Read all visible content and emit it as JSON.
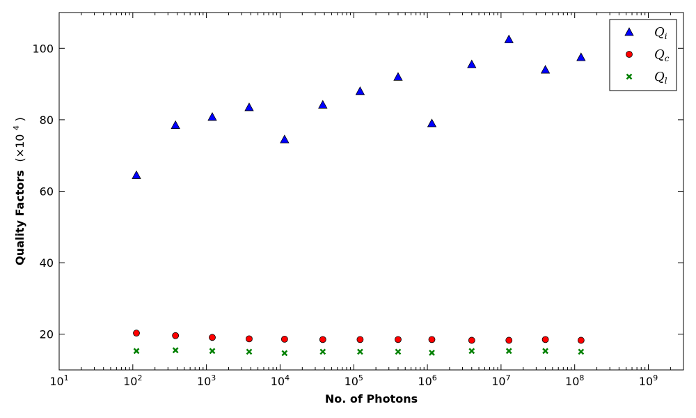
{
  "chart_data": {
    "type": "scatter",
    "xlabel": "No. of Photons",
    "ylabel": "Quality Factors",
    "ylabel_multiplier": "(×10",
    "ylabel_exponent": "4",
    "ylabel_close": ")",
    "x_scale": "log",
    "xlim": [
      10,
      3000000000
    ],
    "ylim": [
      10,
      110
    ],
    "x_ticks": [
      {
        "value": 10,
        "base": "10",
        "exp": "1"
      },
      {
        "value": 100,
        "base": "10",
        "exp": "2"
      },
      {
        "value": 1000,
        "base": "10",
        "exp": "3"
      },
      {
        "value": 10000,
        "base": "10",
        "exp": "4"
      },
      {
        "value": 100000,
        "base": "10",
        "exp": "5"
      },
      {
        "value": 1000000,
        "base": "10",
        "exp": "6"
      },
      {
        "value": 10000000,
        "base": "10",
        "exp": "7"
      },
      {
        "value": 100000000,
        "base": "10",
        "exp": "8"
      },
      {
        "value": 1000000000,
        "base": "10",
        "exp": "9"
      }
    ],
    "y_ticks": [
      "20",
      "40",
      "60",
      "80",
      "100"
    ],
    "legend_position": "top-right",
    "grid": false,
    "x": [
      112,
      380,
      1200,
      3800,
      11500,
      38000,
      122000,
      400000,
      1150000,
      4000000,
      12800000,
      40000000,
      122000000
    ],
    "series": [
      {
        "name": "Q",
        "sub": "i",
        "marker": "triangle",
        "color": "#0000ff",
        "values": [
          64.5,
          78.5,
          80.8,
          83.5,
          74.5,
          84.2,
          88.0,
          92.0,
          79.0,
          95.5,
          102.5,
          94.0,
          97.5
        ]
      },
      {
        "name": "Q",
        "sub": "c",
        "marker": "circle",
        "color": "#ff0000",
        "values": [
          20.3,
          19.6,
          19.1,
          18.7,
          18.6,
          18.5,
          18.5,
          18.5,
          18.5,
          18.3,
          18.3,
          18.5,
          18.3
        ]
      },
      {
        "name": "Q",
        "sub": "l",
        "marker": "x",
        "color": "#008000",
        "values": [
          15.3,
          15.5,
          15.3,
          15.1,
          14.7,
          15.1,
          15.1,
          15.1,
          14.8,
          15.3,
          15.3,
          15.3,
          15.1
        ]
      }
    ]
  }
}
